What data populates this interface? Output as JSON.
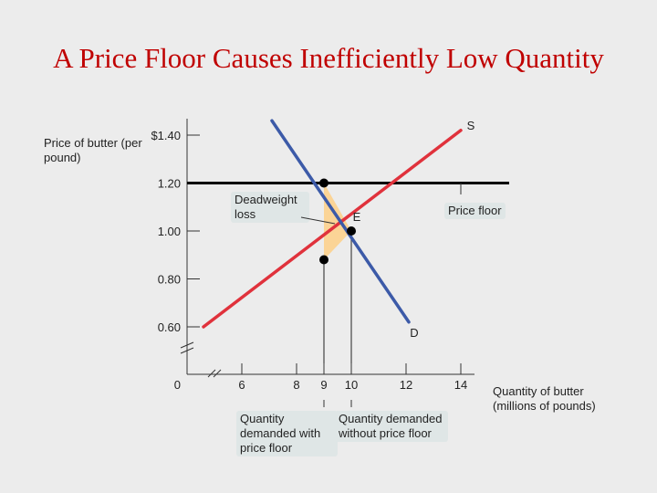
{
  "title": "A Price Floor Causes Inefficiently Low Quantity",
  "chart_data": {
    "type": "line",
    "ylabel": "Price of butter (per pound)",
    "xlabel": "Quantity of butter (millions of pounds)",
    "x_ticks": [
      "0",
      "6",
      "8",
      "9",
      "10",
      "12",
      "14"
    ],
    "y_ticks": [
      "$1.40",
      "1.20",
      "1.00",
      "0.80",
      "0.60"
    ],
    "xlim": [
      6,
      14
    ],
    "ylim": [
      0.6,
      1.4
    ],
    "axis_breaks": true,
    "series": [
      {
        "name": "S",
        "color": "#e0323c",
        "x": [
          4.6,
          14
        ],
        "y": [
          0.6,
          1.42
        ]
      },
      {
        "name": "D",
        "color": "#3c5aa8",
        "x": [
          7.1,
          12.1
        ],
        "y": [
          1.46,
          0.62
        ]
      }
    ],
    "price_floor": {
      "label": "Price floor",
      "price": 1.2,
      "color": "#000000"
    },
    "equilibrium": {
      "label": "E",
      "x": 10,
      "y": 1.0
    },
    "points": [
      {
        "x": 9,
        "y": 1.2
      },
      {
        "x": 10,
        "y": 1.0
      },
      {
        "x": 9,
        "y": 0.88
      }
    ],
    "deadweight_loss": {
      "label": "Deadweight loss",
      "color": "#fbd496",
      "vertices": [
        [
          9,
          1.2
        ],
        [
          10,
          1.0
        ],
        [
          9,
          0.88
        ]
      ]
    },
    "annotations": {
      "qd_with_floor": {
        "label": "Quantity demanded with price floor",
        "x": 9
      },
      "qd_without_floor": {
        "label": "Quantity demanded without price floor",
        "x": 10
      }
    }
  }
}
